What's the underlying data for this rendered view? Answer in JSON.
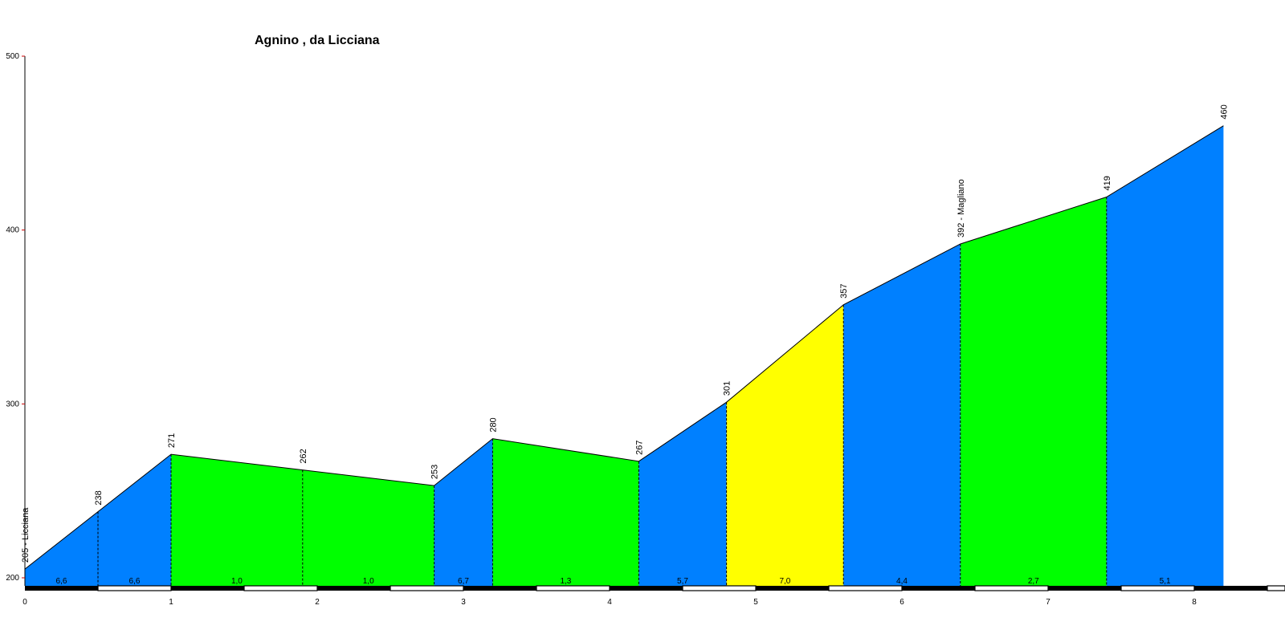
{
  "chart_data": {
    "type": "area",
    "title": "Agnino , da Licciana",
    "xlabel": "",
    "ylabel": "",
    "xlim": [
      0,
      8.6
    ],
    "ylim": [
      200,
      500
    ],
    "y_ticks": [
      "200",
      "300",
      "400",
      "500"
    ],
    "x_ticks": [
      "0",
      "1",
      "2",
      "3",
      "4",
      "5",
      "6",
      "7",
      "8"
    ],
    "points": [
      {
        "x": 0.0,
        "y": 205,
        "label": "205 - Licciana"
      },
      {
        "x": 0.5,
        "y": 238,
        "label": "238"
      },
      {
        "x": 1.0,
        "y": 271,
        "label": "271"
      },
      {
        "x": 1.9,
        "y": 262,
        "label": "262"
      },
      {
        "x": 2.8,
        "y": 253,
        "label": "253"
      },
      {
        "x": 3.2,
        "y": 280,
        "label": "280"
      },
      {
        "x": 4.2,
        "y": 267,
        "label": "267"
      },
      {
        "x": 4.8,
        "y": 301,
        "label": "301"
      },
      {
        "x": 5.6,
        "y": 357,
        "label": "357"
      },
      {
        "x": 6.4,
        "y": 392,
        "label": "392 - Magliano"
      },
      {
        "x": 7.4,
        "y": 419,
        "label": "419"
      },
      {
        "x": 8.2,
        "y": 460,
        "label": "460"
      }
    ],
    "segments": [
      {
        "grade": "6,6",
        "color": "#0080ff"
      },
      {
        "grade": "6,6",
        "color": "#0080ff"
      },
      {
        "grade": "1,0",
        "color": "#00ff00"
      },
      {
        "grade": "1,0",
        "color": "#00ff00"
      },
      {
        "grade": "6,7",
        "color": "#0080ff"
      },
      {
        "grade": "1,3",
        "color": "#00ff00"
      },
      {
        "grade": "5,7",
        "color": "#0080ff"
      },
      {
        "grade": "7,0",
        "color": "#ffff00"
      },
      {
        "grade": "4,4",
        "color": "#0080ff"
      },
      {
        "grade": "2,7",
        "color": "#00ff00"
      },
      {
        "grade": "5,1",
        "color": "#0080ff"
      }
    ],
    "grid": false
  }
}
